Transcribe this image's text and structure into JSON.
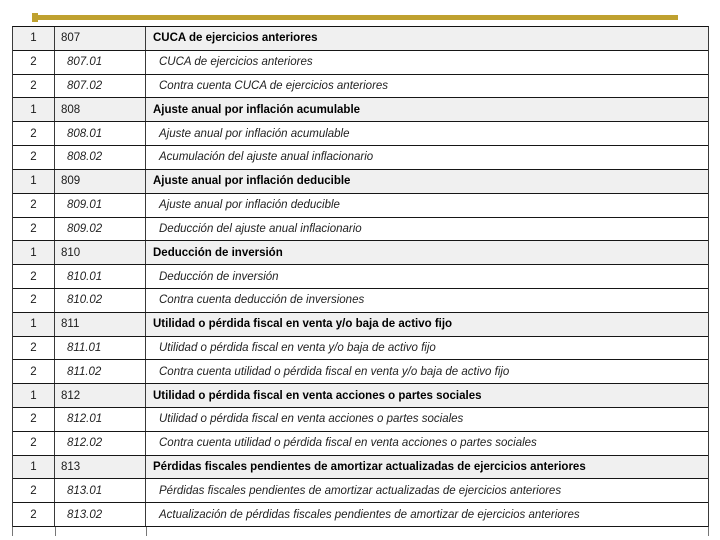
{
  "slide": {
    "accent_color": "#BFA12F",
    "level1_row_shade": "#f0f0f0"
  },
  "table": {
    "columns": [
      "level",
      "code",
      "description"
    ],
    "rows": [
      {
        "level": 1,
        "code": "807",
        "description": "CUCA de ejercicios anteriores"
      },
      {
        "level": 2,
        "code": "807.01",
        "description": "CUCA de ejercicios anteriores"
      },
      {
        "level": 2,
        "code": "807.02",
        "description": "Contra cuenta CUCA de ejercicios anteriores"
      },
      {
        "level": 1,
        "code": "808",
        "description": "Ajuste anual por inflación acumulable"
      },
      {
        "level": 2,
        "code": "808.01",
        "description": "Ajuste anual por inflación acumulable"
      },
      {
        "level": 2,
        "code": "808.02",
        "description": "Acumulación del ajuste anual inflacionario"
      },
      {
        "level": 1,
        "code": "809",
        "description": "Ajuste anual por inflación deducible"
      },
      {
        "level": 2,
        "code": "809.01",
        "description": "Ajuste anual por inflación deducible"
      },
      {
        "level": 2,
        "code": "809.02",
        "description": "Deducción del ajuste anual inflacionario"
      },
      {
        "level": 1,
        "code": "810",
        "description": "Deducción de inversión"
      },
      {
        "level": 2,
        "code": "810.01",
        "description": "Deducción de inversión"
      },
      {
        "level": 2,
        "code": "810.02",
        "description": "Contra cuenta deducción de inversiones"
      },
      {
        "level": 1,
        "code": "811",
        "description": "Utilidad o pérdida fiscal en venta y/o baja de activo fijo"
      },
      {
        "level": 2,
        "code": "811.01",
        "description": "Utilidad o pérdida fiscal en venta y/o baja de activo fijo"
      },
      {
        "level": 2,
        "code": "811.02",
        "description": "Contra cuenta utilidad o pérdida fiscal en venta y/o baja de activo fijo"
      },
      {
        "level": 1,
        "code": "812",
        "description": "Utilidad o pérdida fiscal en venta acciones o partes sociales"
      },
      {
        "level": 2,
        "code": "812.01",
        "description": "Utilidad o pérdida fiscal en venta acciones o partes sociales"
      },
      {
        "level": 2,
        "code": "812.02",
        "description": "Contra cuenta utilidad o pérdida fiscal en venta acciones o partes sociales"
      },
      {
        "level": 1,
        "code": "813",
        "description": "Pérdidas fiscales pendientes de amortizar actualizadas de ejercicios anteriores"
      },
      {
        "level": 2,
        "code": "813.01",
        "description": "Pérdidas fiscales pendientes de amortizar actualizadas de ejercicios anteriores"
      },
      {
        "level": 2,
        "code": "813.02",
        "description": "Actualización de pérdidas fiscales pendientes de amortizar de ejercicios anteriores"
      }
    ]
  }
}
